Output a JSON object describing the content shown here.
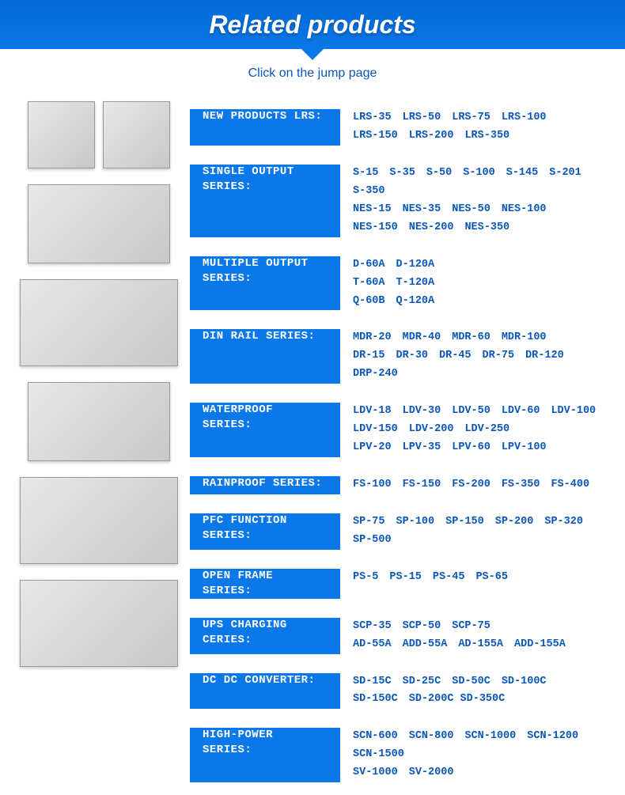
{
  "banner": {
    "title": "Related products"
  },
  "subtitle": "Click on the jump page",
  "link_color": "#0a57b8",
  "categories": [
    {
      "label": "NEW PRODUCTS LRS:",
      "lines": [
        [
          "LRS-35",
          "LRS-50",
          "LRS-75",
          "LRS-100"
        ],
        [
          "LRS-150",
          "LRS-200",
          "LRS-350"
        ]
      ]
    },
    {
      "label": "SINGLE OUTPUT SERIES:",
      "lines": [
        [
          "S-15",
          "S-35",
          "S-50",
          "S-100",
          "S-145",
          "S-201"
        ],
        [
          "S-350"
        ],
        [
          "NES-15",
          "NES-35",
          "NES-50",
          "NES-100"
        ],
        [
          "NES-150",
          "NES-200",
          "NES-350"
        ]
      ]
    },
    {
      "label": "MULTIPLE OUTPUT SERIES:",
      "lines": [
        [
          "D-60A",
          "D-120A"
        ],
        [
          "T-60A",
          "T-120A"
        ],
        [
          "Q-60B",
          "Q-120A"
        ]
      ]
    },
    {
      "label": "DIN RAIL SERIES:",
      "lines": [
        [
          "MDR-20",
          "MDR-40",
          "MDR-60",
          "MDR-100"
        ],
        [
          "DR-15",
          "DR-30",
          "DR-45",
          "DR-75",
          "DR-120"
        ],
        [
          "DRP-240"
        ]
      ]
    },
    {
      "label": "WATERPROOF SERIES:",
      "lines": [
        [
          "LDV-18",
          "LDV-30",
          "LDV-50",
          "LDV-60",
          "LDV-100"
        ],
        [
          "LDV-150",
          "LDV-200",
          "LDV-250"
        ],
        [
          "LPV-20",
          "LPV-35",
          "LPV-60",
          "LPV-100"
        ]
      ]
    },
    {
      "label": "RAINPROOF SERIES:",
      "lines": [
        [
          "FS-100",
          "FS-150",
          "FS-200",
          "FS-350",
          "FS-400"
        ]
      ]
    },
    {
      "label": "PFC FUNCTION SERIES:",
      "lines": [
        [
          "SP-75",
          "SP-100",
          "SP-150",
          "SP-200",
          "SP-320"
        ],
        [
          "SP-500"
        ]
      ]
    },
    {
      "label": "OPEN FRAME SERIES:",
      "lines": [
        [
          "PS-5",
          "PS-15",
          "PS-45",
          "PS-65"
        ]
      ]
    },
    {
      "label": "UPS CHARGING CERIES:",
      "lines": [
        [
          "SCP-35",
          "SCP-50",
          "SCP-75"
        ],
        [
          "AD-55A",
          "ADD-55A",
          "AD-155A",
          "ADD-155A"
        ]
      ]
    },
    {
      "label": "DC DC CONVERTER:",
      "lines": [
        [
          "SD-15C",
          "SD-25C",
          "SD-50C",
          "SD-100C"
        ],
        [
          "SD-150C",
          "SD-200C SD-350C"
        ]
      ]
    },
    {
      "label": "HIGH-POWER SERIES:",
      "lines": [
        [
          "SCN-600",
          "SCN-800",
          "SCN-1000",
          "SCN-1200"
        ],
        [
          "SCN-1500"
        ],
        [
          "SV-1000",
          "SV-2000"
        ]
      ]
    }
  ],
  "left_images": [
    {
      "alt": "din-rail-teal",
      "cls": "prod-small"
    },
    {
      "alt": "din-rail-white",
      "cls": "prod-small"
    },
    {
      "alt": "psu-medium",
      "cls": "prod-wider"
    },
    {
      "alt": "psu-large-fan",
      "cls": "prod-wide"
    },
    {
      "alt": "psu-open-1",
      "cls": "prod-wider"
    },
    {
      "alt": "psu-open-wires",
      "cls": "prod-wide"
    },
    {
      "alt": "psu-enclosed",
      "cls": "prod-wide"
    }
  ]
}
